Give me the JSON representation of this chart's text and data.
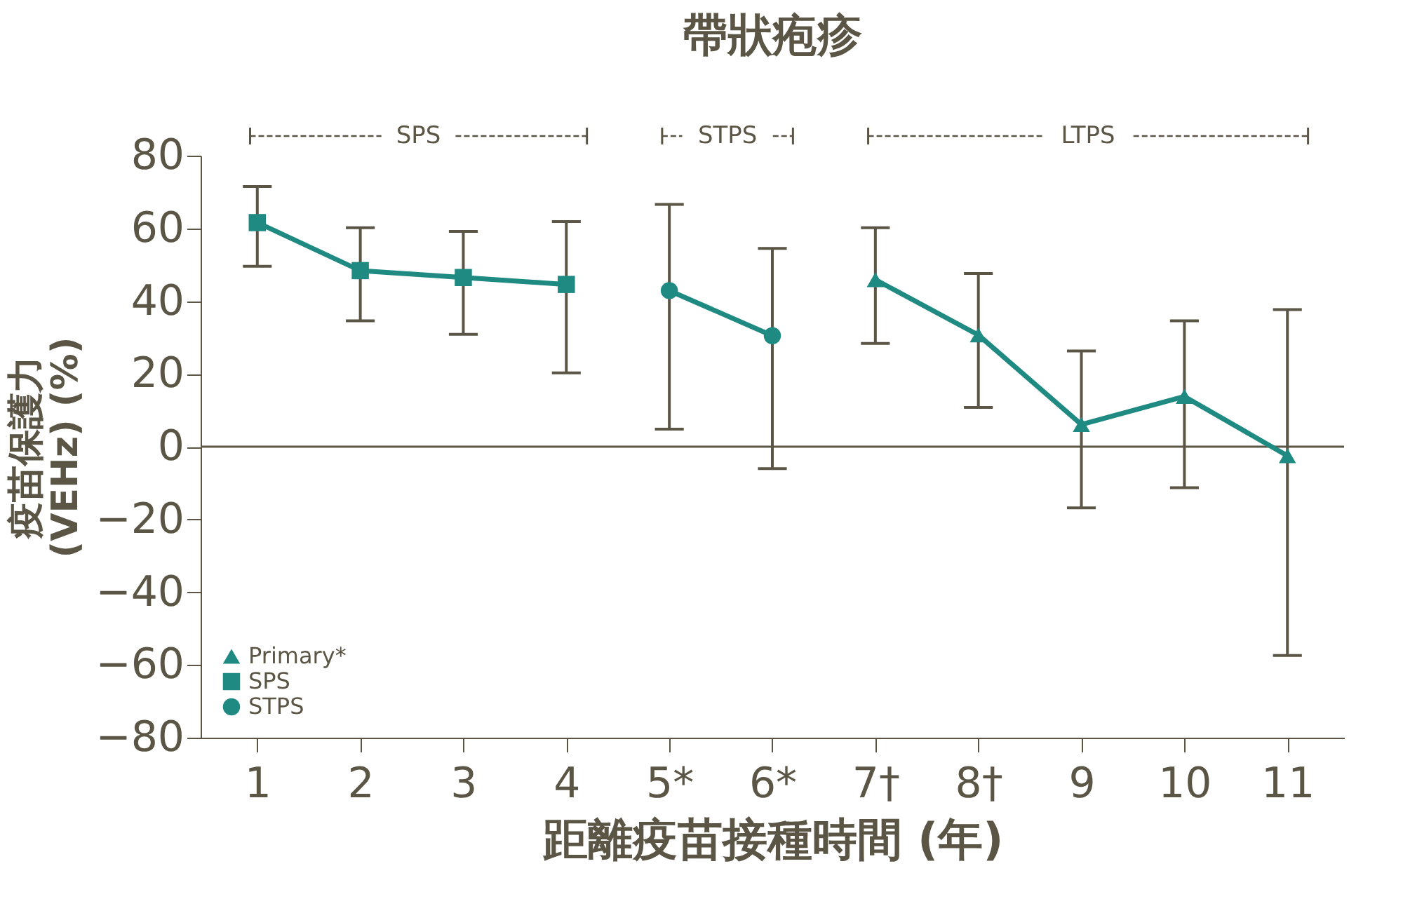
{
  "chart_data": {
    "type": "line",
    "title": "帶狀疱疹",
    "xlabel": "距離疫苗接種時間 (年)",
    "ylabel": "疫苗保護力 (VEHz) (%)",
    "categories": [
      "1",
      "2",
      "3",
      "4",
      "5*",
      "6*",
      "7†",
      "8†",
      "9",
      "10",
      "11"
    ],
    "series": [
      {
        "name": "Primary*",
        "color": "#1f8a82",
        "marker": "triangle",
        "values": [
          null,
          null,
          null,
          null,
          null,
          null,
          45.9,
          30.7,
          6.1,
          13.8,
          -2.5
        ],
        "errors": [
          null,
          null,
          null,
          null,
          null,
          null,
          [
            28.4,
            60.2
          ],
          [
            10.8,
            47.6
          ],
          [
            -16.8,
            26.3
          ],
          [
            -11.3,
            34.6
          ],
          [
            -57.4,
            37.7
          ]
        ]
      },
      {
        "name": "SPS",
        "color": "#1f8a82",
        "marker": "square",
        "values": [
          61.6,
          48.4,
          46.5,
          44.6,
          null,
          null,
          null,
          null,
          null,
          null,
          null
        ],
        "errors": [
          [
            49.6,
            71.5
          ],
          [
            34.6,
            60.2
          ],
          [
            30.9,
            59.2
          ],
          [
            20.3,
            61.9
          ],
          null,
          null,
          null,
          null,
          null,
          null,
          null
        ]
      },
      {
        "name": "STPS",
        "color": "#1f8a82",
        "marker": "circle",
        "values": [
          null,
          null,
          null,
          null,
          42.9,
          30.5,
          null,
          null,
          null,
          null,
          null
        ],
        "errors": [
          null,
          null,
          null,
          null,
          [
            4.8,
            66.6
          ],
          [
            -6.0,
            54.5
          ],
          null,
          null,
          null,
          null,
          null
        ]
      }
    ],
    "annotations": [
      "SPS",
      "STPS",
      "LTPS"
    ],
    "ref_lines": [
      {
        "axis": "y",
        "value": 0,
        "color": "#5b5545"
      }
    ],
    "ylim": [
      -80,
      80
    ],
    "yticks": [
      -80,
      -60,
      -40,
      -20,
      0,
      20,
      40,
      60,
      80
    ],
    "grid": false,
    "legend": "bottom left",
    "line_style": "solid"
  }
}
